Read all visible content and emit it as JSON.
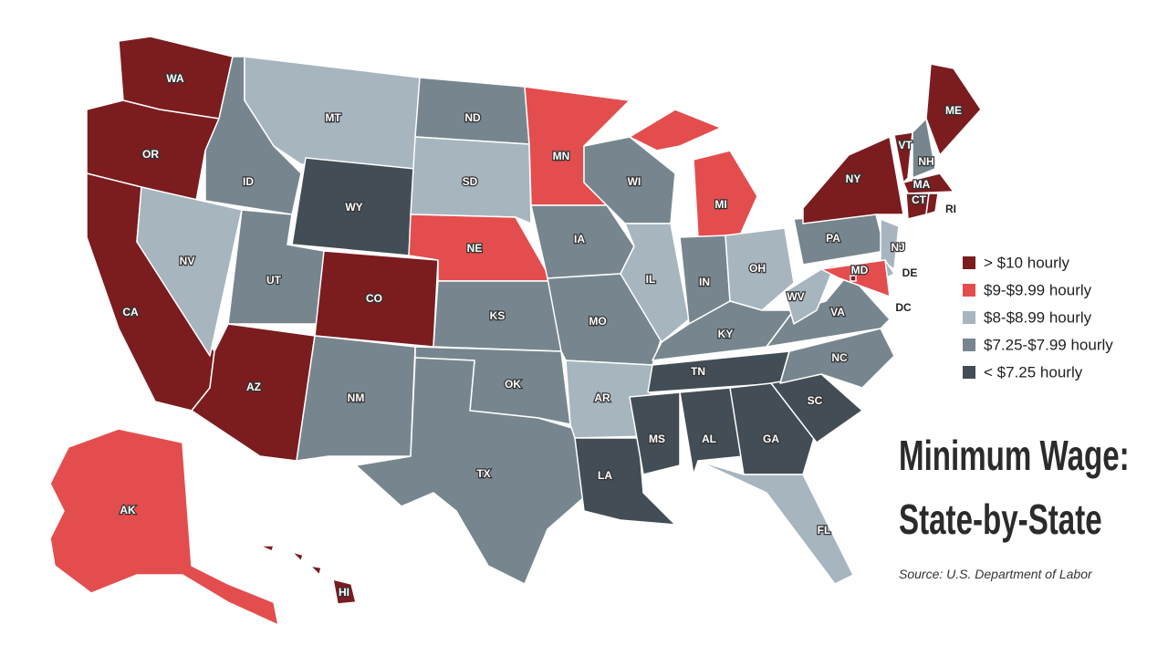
{
  "title": [
    "Minimum Wage:",
    "State-by-State"
  ],
  "source": "Source: U.S. Department of Labor",
  "legend": [
    {
      "label": "> $10 hourly",
      "color": "#7b1c1f"
    },
    {
      "label": "$9-$9.99 hourly",
      "color": "#e44d4e"
    },
    {
      "label": "$8-$8.99 hourly",
      "color": "#a7b5bf"
    },
    {
      "label": "$7.25-$7.99 hourly",
      "color": "#77868e"
    },
    {
      "label": "< $7.25 hourly",
      "color": "#434d55"
    }
  ],
  "states": [
    {
      "label": "WA",
      "color": "#7b1c1f"
    },
    {
      "label": "OR",
      "color": "#7b1c1f"
    },
    {
      "label": "CA",
      "color": "#7b1c1f"
    },
    {
      "label": "NV",
      "color": "#a7b5bf"
    },
    {
      "label": "ID",
      "color": "#77868e"
    },
    {
      "label": "MT",
      "color": "#a7b5bf"
    },
    {
      "label": "WY",
      "color": "#434d55"
    },
    {
      "label": "UT",
      "color": "#77868e"
    },
    {
      "label": "CO",
      "color": "#7b1c1f"
    },
    {
      "label": "AZ",
      "color": "#7b1c1f"
    },
    {
      "label": "NM",
      "color": "#77868e"
    },
    {
      "label": "ND",
      "color": "#77868e"
    },
    {
      "label": "SD",
      "color": "#a7b5bf"
    },
    {
      "label": "NE",
      "color": "#e44d4e"
    },
    {
      "label": "KS",
      "color": "#77868e"
    },
    {
      "label": "OK",
      "color": "#77868e"
    },
    {
      "label": "TX",
      "color": "#77868e"
    },
    {
      "label": "MN",
      "color": "#e44d4e"
    },
    {
      "label": "IA",
      "color": "#77868e"
    },
    {
      "label": "MO",
      "color": "#77868e"
    },
    {
      "label": "AR",
      "color": "#a7b5bf"
    },
    {
      "label": "LA",
      "color": "#434d55"
    },
    {
      "label": "WI",
      "color": "#77868e"
    },
    {
      "label": "IL",
      "color": "#a7b5bf"
    },
    {
      "label": "MI",
      "color": "#e44d4e"
    },
    {
      "label": "IN",
      "color": "#77868e"
    },
    {
      "label": "OH",
      "color": "#a7b5bf"
    },
    {
      "label": "KY",
      "color": "#77868e"
    },
    {
      "label": "TN",
      "color": "#434d55"
    },
    {
      "label": "MS",
      "color": "#434d55"
    },
    {
      "label": "AL",
      "color": "#434d55"
    },
    {
      "label": "GA",
      "color": "#434d55"
    },
    {
      "label": "FL",
      "color": "#a7b5bf"
    },
    {
      "label": "SC",
      "color": "#434d55"
    },
    {
      "label": "NC",
      "color": "#77868e"
    },
    {
      "label": "VA",
      "color": "#77868e"
    },
    {
      "label": "WV",
      "color": "#a7b5bf"
    },
    {
      "label": "PA",
      "color": "#77868e"
    },
    {
      "label": "NY",
      "color": "#7b1c1f"
    },
    {
      "label": "VT",
      "color": "#7b1c1f"
    },
    {
      "label": "NH",
      "color": "#77868e"
    },
    {
      "label": "ME",
      "color": "#7b1c1f"
    },
    {
      "label": "MA",
      "color": "#7b1c1f"
    },
    {
      "label": "CT",
      "color": "#7b1c1f"
    },
    {
      "label": "RI",
      "color": "#7b1c1f"
    },
    {
      "label": "NJ",
      "color": "#a7b5bf"
    },
    {
      "label": "DE",
      "color": "#a7b5bf"
    },
    {
      "label": "MD",
      "color": "#e44d4e"
    },
    {
      "label": "DC",
      "color": "#7b1c1f"
    },
    {
      "label": "AK",
      "color": "#e44d4e"
    },
    {
      "label": "HI",
      "color": "#7b1c1f"
    }
  ]
}
